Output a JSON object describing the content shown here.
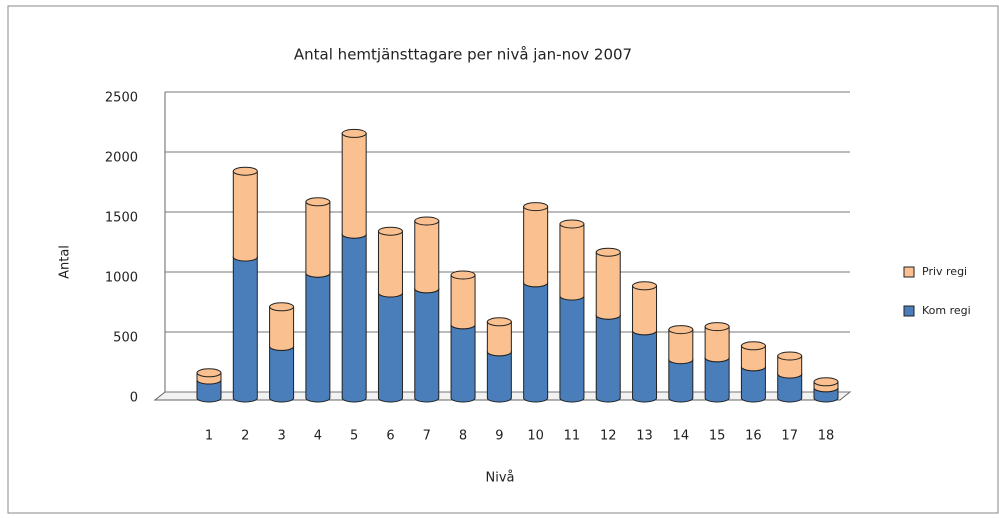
{
  "chart_data": {
    "type": "bar",
    "stacked": true,
    "title": "Antal hemtjänsttagare per nivå jan-nov 2007",
    "x_label": "Nivå",
    "y_label": "Antal",
    "categories": [
      "1",
      "2",
      "3",
      "4",
      "5",
      "6",
      "7",
      "8",
      "9",
      "10",
      "11",
      "12",
      "13",
      "14",
      "15",
      "16",
      "17",
      "18"
    ],
    "series": [
      {
        "name": "Kom regi",
        "color": "#4a7ebb",
        "values": [
          150,
          1175,
          430,
          1040,
          1365,
          875,
          910,
          610,
          385,
          960,
          850,
          690,
          560,
          320,
          335,
          260,
          200,
          85
        ]
      },
      {
        "name": "Priv regi",
        "color": "#fac08f",
        "values": [
          60,
          715,
          330,
          595,
          840,
          515,
          565,
          415,
          250,
          635,
          600,
          525,
          375,
          250,
          260,
          175,
          150,
          50
        ]
      }
    ],
    "ylim": [
      0,
      2500
    ],
    "yticks": [
      0,
      500,
      1000,
      1500,
      2000,
      2500
    ],
    "grid": true
  }
}
